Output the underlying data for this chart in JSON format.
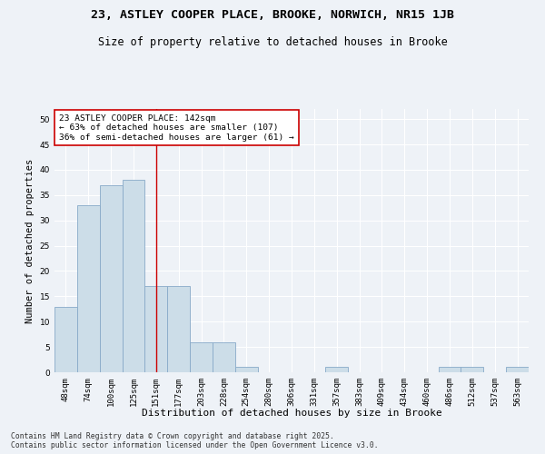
{
  "title1": "23, ASTLEY COOPER PLACE, BROOKE, NORWICH, NR15 1JB",
  "title2": "Size of property relative to detached houses in Brooke",
  "xlabel": "Distribution of detached houses by size in Brooke",
  "ylabel": "Number of detached properties",
  "categories": [
    "48sqm",
    "74sqm",
    "100sqm",
    "125sqm",
    "151sqm",
    "177sqm",
    "203sqm",
    "228sqm",
    "254sqm",
    "280sqm",
    "306sqm",
    "331sqm",
    "357sqm",
    "383sqm",
    "409sqm",
    "434sqm",
    "460sqm",
    "486sqm",
    "512sqm",
    "537sqm",
    "563sqm"
  ],
  "values": [
    13,
    33,
    37,
    38,
    17,
    17,
    6,
    6,
    1,
    0,
    0,
    0,
    1,
    0,
    0,
    0,
    0,
    1,
    1,
    0,
    1
  ],
  "bar_color": "#ccdde8",
  "bar_edge_color": "#88aac8",
  "vline_x": 4.0,
  "vline_color": "#cc0000",
  "annotation_text": "23 ASTLEY COOPER PLACE: 142sqm\n← 63% of detached houses are smaller (107)\n36% of semi-detached houses are larger (61) →",
  "annotation_box_color": "#ffffff",
  "annotation_box_edge": "#cc0000",
  "ylim": [
    0,
    52
  ],
  "yticks": [
    0,
    5,
    10,
    15,
    20,
    25,
    30,
    35,
    40,
    45,
    50
  ],
  "background_color": "#eef2f7",
  "grid_color": "#ffffff",
  "footnote": "Contains HM Land Registry data © Crown copyright and database right 2025.\nContains public sector information licensed under the Open Government Licence v3.0.",
  "title1_fontsize": 9.5,
  "title2_fontsize": 8.5,
  "xlabel_fontsize": 8,
  "ylabel_fontsize": 7.5,
  "tick_fontsize": 6.5,
  "annotation_fontsize": 6.8,
  "footnote_fontsize": 5.8
}
